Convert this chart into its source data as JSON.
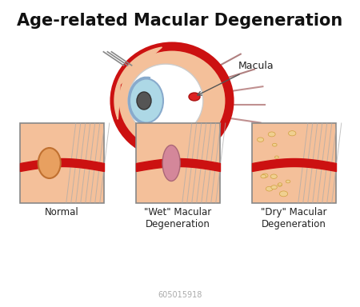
{
  "title": "Age-related Macular Degeneration",
  "title_fontsize": 15,
  "background_color": "#ffffff",
  "macula_label": "Macula",
  "normal_label": "Normal",
  "wet_label": "\"Wet\" Macular\nDegeneration",
  "dry_label": "\"Dry\" Macular\nDegeneration",
  "watermark": "605015918",
  "eye_skin_color": "#F4C09A",
  "eye_red_color": "#CC1111",
  "eye_sclera_color": "#E8E8E8",
  "eye_lens_color": "#ADD8E6",
  "retina_color": "#E8A87C",
  "red_layer_color": "#CC1111",
  "wet_lesion_color": "#D4879A",
  "dry_spot_color": "#F0D090",
  "box_border_color": "#888888",
  "label_fontsize": 8.5
}
